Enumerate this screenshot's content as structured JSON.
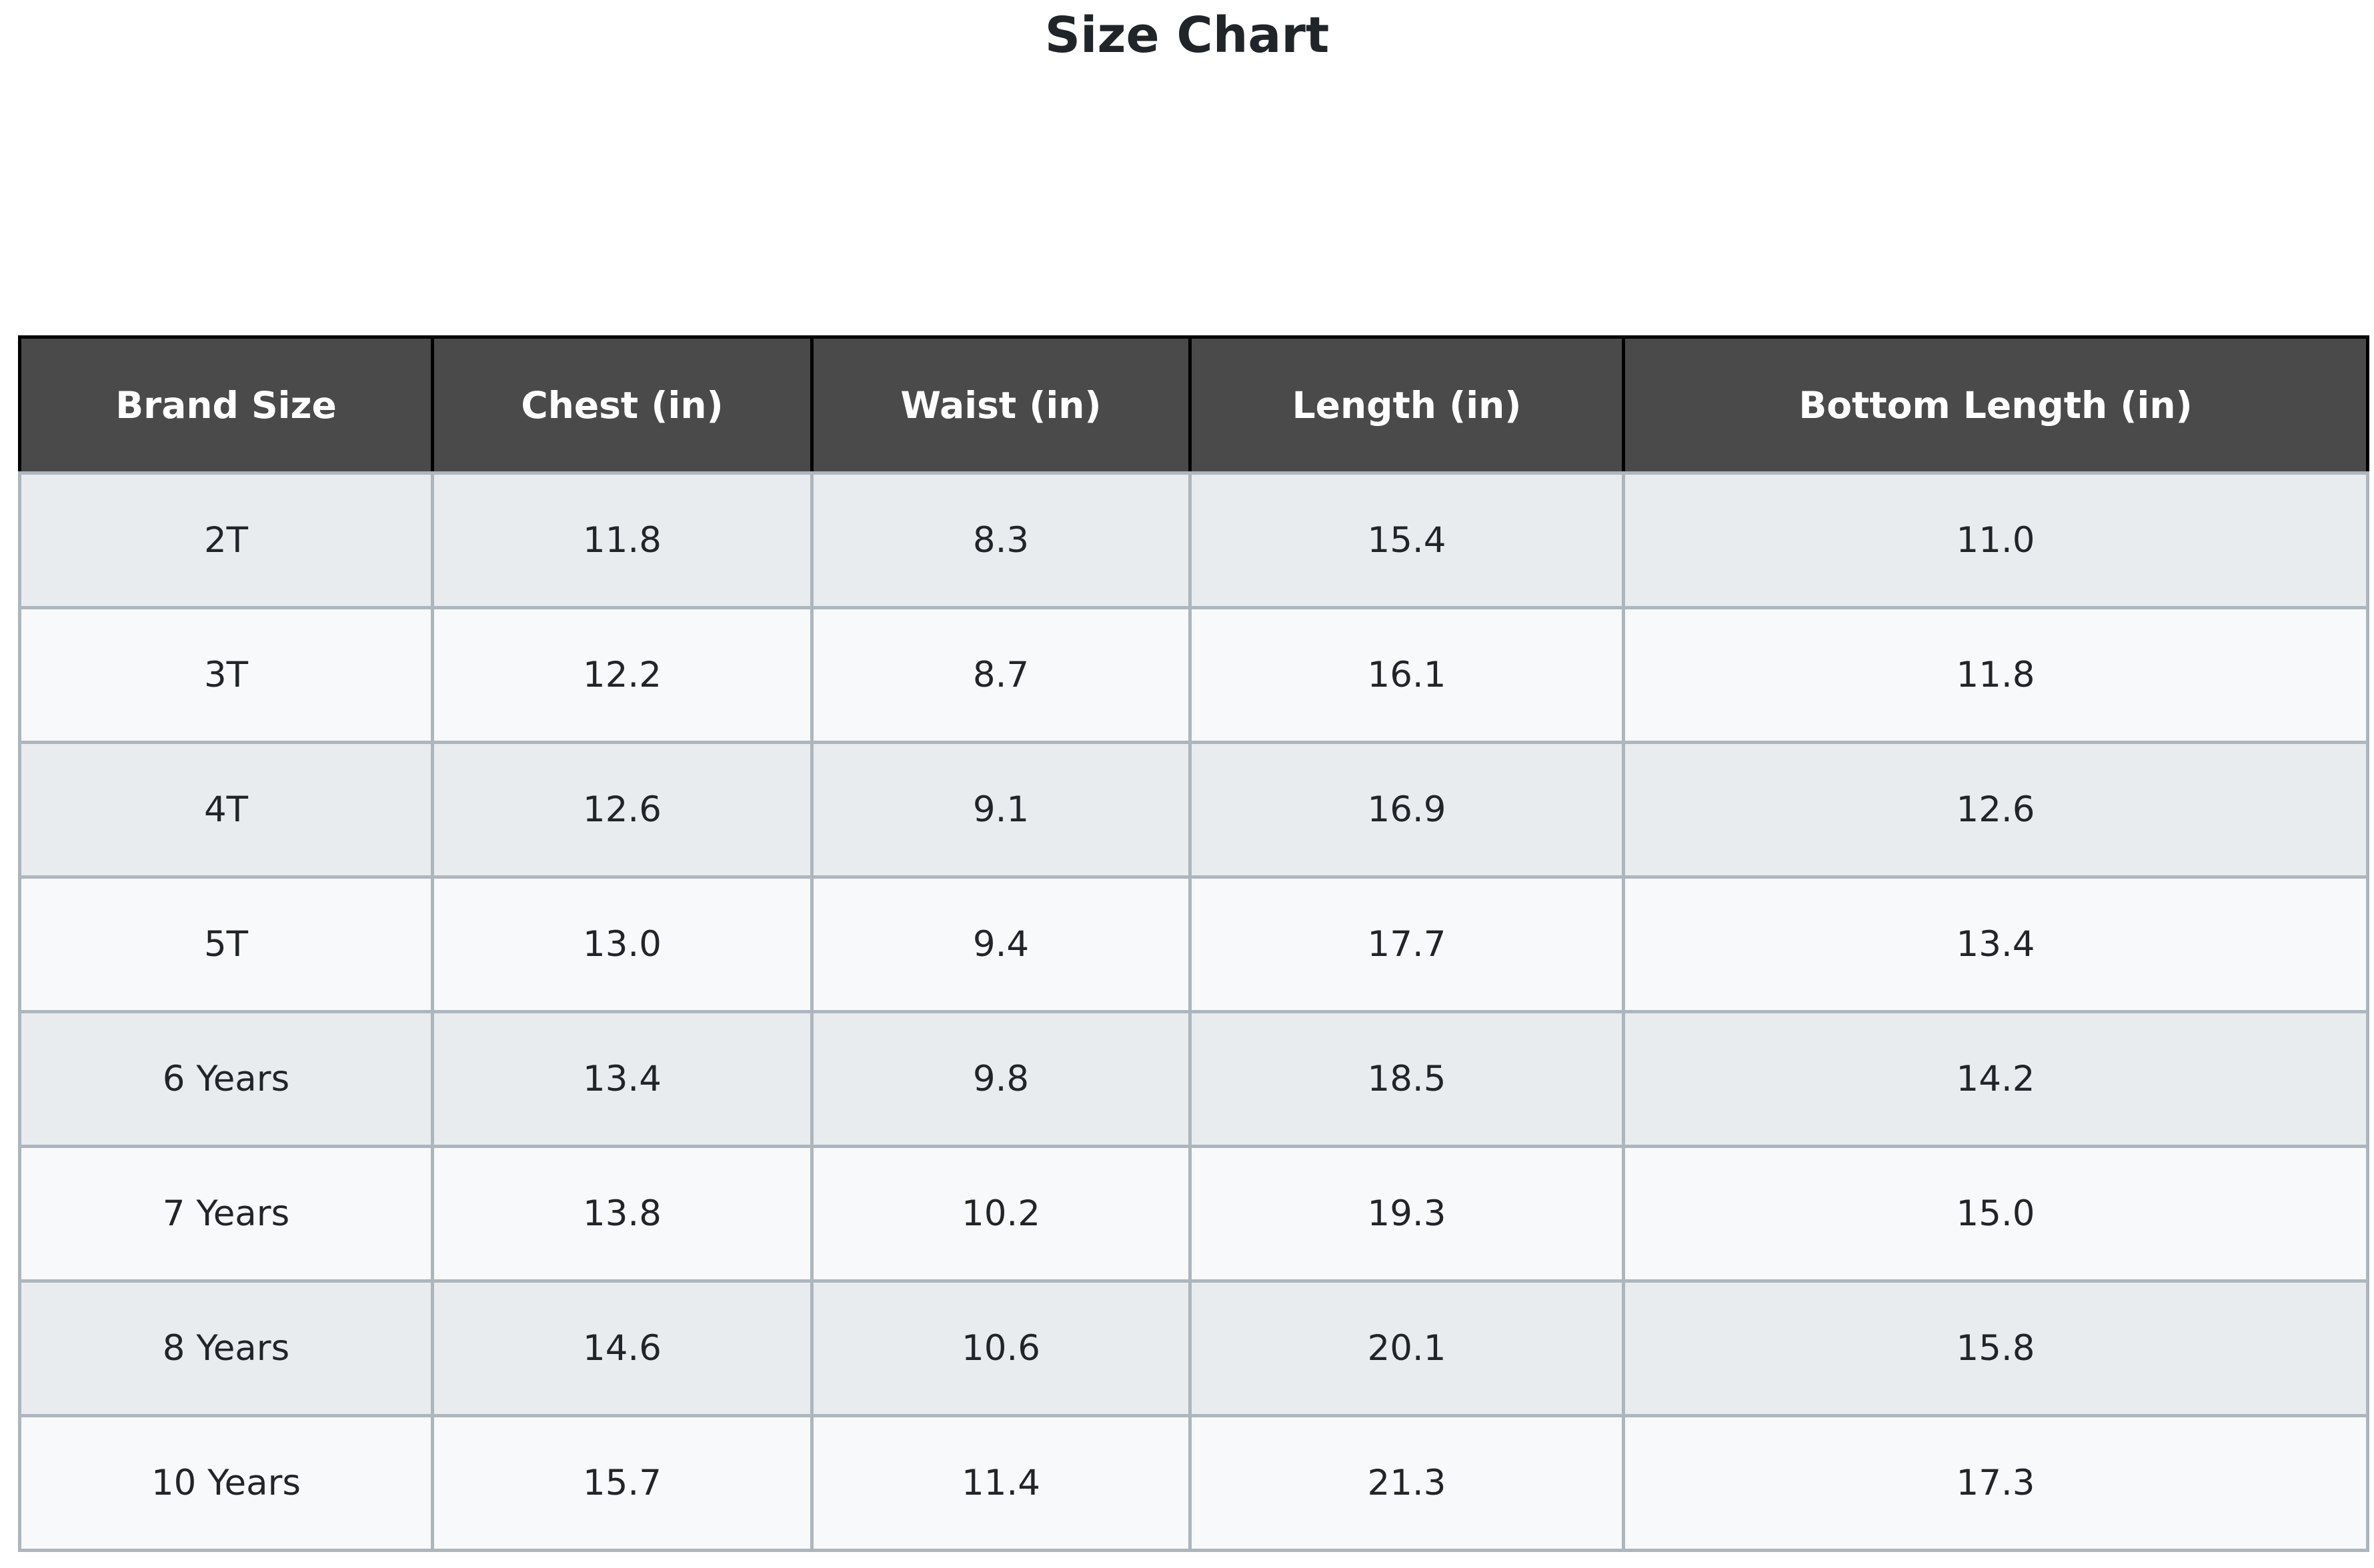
{
  "chart_data": {
    "type": "table",
    "title": "Size Chart",
    "columns": [
      "Brand Size",
      "Chest (in)",
      "Waist (in)",
      "Length (in)",
      "Bottom Length (in)"
    ],
    "rows": [
      [
        "2T",
        "11.8",
        "8.3",
        "15.4",
        "11.0"
      ],
      [
        "3T",
        "12.2",
        "8.7",
        "16.1",
        "11.8"
      ],
      [
        "4T",
        "12.6",
        "9.1",
        "16.9",
        "12.6"
      ],
      [
        "5T",
        "13.0",
        "9.4",
        "17.7",
        "13.4"
      ],
      [
        "6 Years",
        "13.4",
        "9.8",
        "18.5",
        "14.2"
      ],
      [
        "7 Years",
        "13.8",
        "10.2",
        "19.3",
        "15.0"
      ],
      [
        "8 Years",
        "14.6",
        "10.6",
        "20.1",
        "15.8"
      ],
      [
        "10 Years",
        "15.7",
        "11.4",
        "21.3",
        "17.3"
      ]
    ]
  },
  "colors": {
    "header_bg": "#4a4a4a",
    "header_text": "#ffffff",
    "header_border": "#000000",
    "row_odd": "#e9ecef",
    "row_even": "#f8f9fa",
    "grid": "#adb5bd",
    "body_text": "#212529",
    "title_text": "#212529"
  }
}
